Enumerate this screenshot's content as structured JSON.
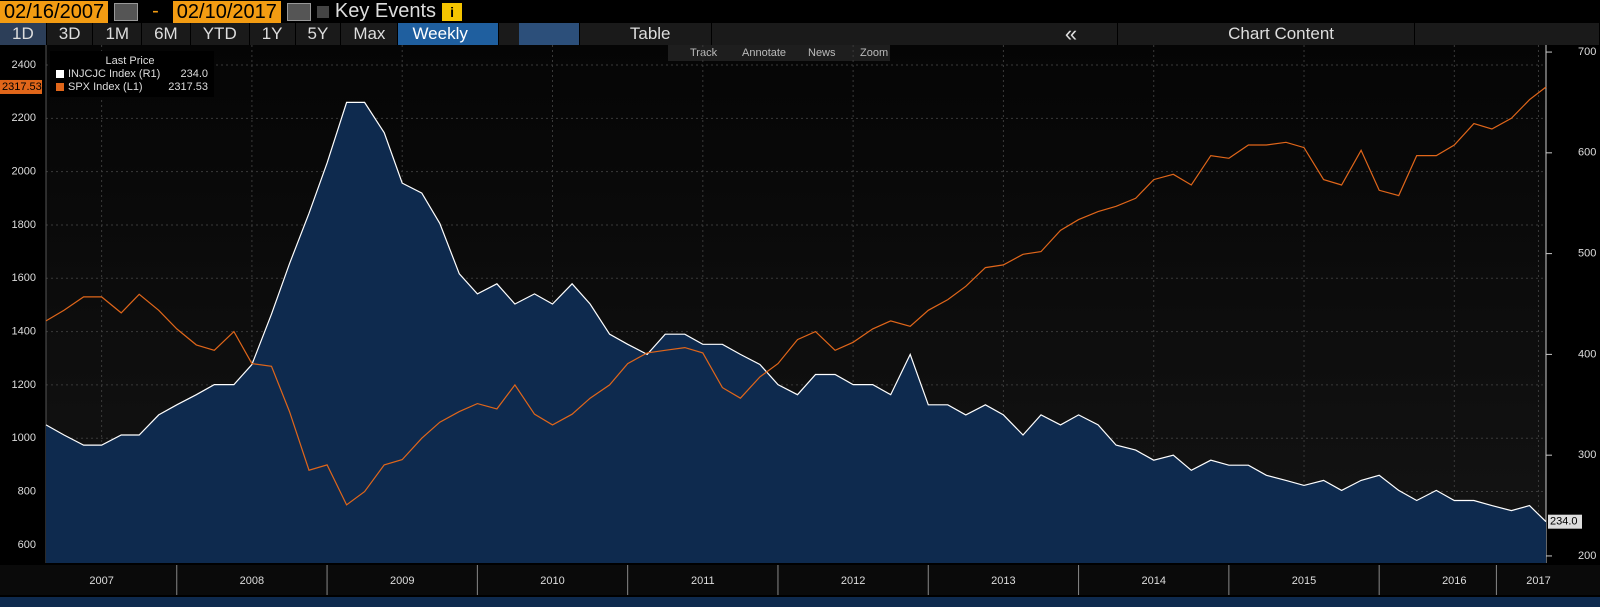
{
  "toolbar": {
    "start_date": "02/16/2007",
    "separator": "-",
    "end_date": "02/10/2017",
    "key_events": "Key Events",
    "ranges": [
      "1D",
      "3D",
      "1M",
      "6M",
      "YTD",
      "1Y",
      "5Y",
      "Max"
    ],
    "frequency": "Weekly",
    "table": "Table",
    "back": "«",
    "chart_content": "Chart Content",
    "tools": [
      "Track",
      "Annotate",
      "News",
      "Zoom"
    ]
  },
  "chart_data": {
    "type": "line",
    "legend": {
      "title": "Last Price"
    },
    "x": [
      2007.13,
      2007.25,
      2007.38,
      2007.5,
      2007.63,
      2007.75,
      2007.88,
      2008.0,
      2008.13,
      2008.25,
      2008.38,
      2008.5,
      2008.63,
      2008.75,
      2008.88,
      2009.0,
      2009.13,
      2009.25,
      2009.38,
      2009.5,
      2009.63,
      2009.75,
      2009.88,
      2010.0,
      2010.13,
      2010.25,
      2010.38,
      2010.5,
      2010.63,
      2010.75,
      2010.88,
      2011.0,
      2011.13,
      2011.25,
      2011.38,
      2011.5,
      2011.63,
      2011.75,
      2011.88,
      2012.0,
      2012.13,
      2012.25,
      2012.38,
      2012.5,
      2012.63,
      2012.75,
      2012.88,
      2013.0,
      2013.13,
      2013.25,
      2013.38,
      2013.5,
      2013.63,
      2013.75,
      2013.88,
      2014.0,
      2014.13,
      2014.25,
      2014.38,
      2014.5,
      2014.63,
      2014.75,
      2014.88,
      2015.0,
      2015.13,
      2015.25,
      2015.38,
      2015.5,
      2015.63,
      2015.75,
      2015.88,
      2016.0,
      2016.13,
      2016.25,
      2016.38,
      2016.5,
      2016.63,
      2016.75,
      2016.88,
      2017.0,
      2017.11
    ],
    "series": [
      {
        "name": "INJCJC Index  (R1)",
        "axis": "y2",
        "color": "#ffffff",
        "fill": "#0e2a4e",
        "last_price": "234.0",
        "values": [
          330,
          320,
          310,
          310,
          320,
          320,
          340,
          350,
          360,
          370,
          370,
          390,
          440,
          490,
          540,
          590,
          650,
          650,
          620,
          570,
          560,
          530,
          480,
          460,
          470,
          450,
          460,
          450,
          470,
          450,
          420,
          410,
          400,
          420,
          420,
          410,
          410,
          400,
          390,
          370,
          360,
          380,
          380,
          370,
          370,
          360,
          400,
          350,
          350,
          340,
          350,
          340,
          320,
          340,
          330,
          340,
          330,
          310,
          305,
          295,
          300,
          285,
          295,
          290,
          290,
          280,
          275,
          270,
          275,
          265,
          275,
          280,
          265,
          255,
          265,
          255,
          255,
          250,
          245,
          250,
          234
        ]
      },
      {
        "name": "SPX Index  (L1)",
        "axis": "y",
        "color": "#e0661a",
        "last_price": "2317.53",
        "values": [
          1440,
          1480,
          1530,
          1530,
          1470,
          1540,
          1480,
          1410,
          1350,
          1330,
          1400,
          1280,
          1270,
          1100,
          880,
          900,
          750,
          800,
          900,
          920,
          1000,
          1060,
          1100,
          1130,
          1110,
          1200,
          1090,
          1050,
          1090,
          1150,
          1200,
          1280,
          1320,
          1330,
          1340,
          1320,
          1190,
          1150,
          1230,
          1280,
          1370,
          1400,
          1330,
          1360,
          1410,
          1440,
          1420,
          1480,
          1520,
          1570,
          1640,
          1650,
          1690,
          1700,
          1780,
          1820,
          1850,
          1870,
          1900,
          1970,
          1990,
          1950,
          2060,
          2050,
          2100,
          2100,
          2110,
          2090,
          1970,
          1950,
          2080,
          1930,
          1910,
          2060,
          2060,
          2100,
          2180,
          2160,
          2200,
          2270,
          2317.53
        ]
      }
    ],
    "xlim": [
      2007.13,
      2017.11
    ],
    "xticks": [
      {
        "value": 2007.5,
        "label": "2007"
      },
      {
        "value": 2008.5,
        "label": "2008"
      },
      {
        "value": 2009.5,
        "label": "2009"
      },
      {
        "value": 2010.5,
        "label": "2010"
      },
      {
        "value": 2011.5,
        "label": "2011"
      },
      {
        "value": 2012.5,
        "label": "2012"
      },
      {
        "value": 2013.5,
        "label": "2013"
      },
      {
        "value": 2014.5,
        "label": "2014"
      },
      {
        "value": 2015.5,
        "label": "2015"
      },
      {
        "value": 2016.5,
        "label": "2016"
      },
      {
        "value": 2017.06,
        "label": "2017"
      }
    ],
    "ylim": [
      532,
      2475
    ],
    "yticks": [
      600,
      800,
      1000,
      1200,
      1400,
      1600,
      1800,
      2000,
      2200,
      2400
    ],
    "y2lim": [
      193,
      707
    ],
    "y2ticks": [
      200,
      300,
      400,
      500,
      600,
      700
    ],
    "grid": true
  }
}
